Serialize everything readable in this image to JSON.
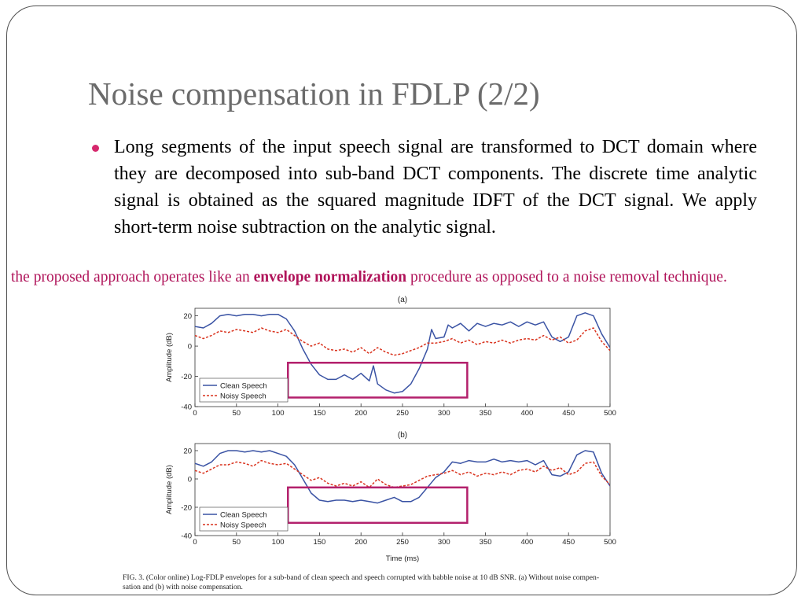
{
  "slide": {
    "title": "Noise compensation in FDLP (2/2)",
    "bullet": "Long segments of the input speech signal are transformed to DCT domain where they are decomposed into sub-band DCT components. The discrete time analytic signal is obtained as the squared magnitude IDFT of the DCT signal. We apply short-term noise subtraction on the analytic signal.",
    "note_before": "the proposed approach operates like an ",
    "note_bold": "envelope normalization",
    "note_after": " procedure as opposed to a noise removal technique.",
    "caption_line1": "FIG. 3.  (Color online) Log-FDLP envelopes for a sub-band of clean speech and speech corrupted with babble noise at 10 dB SNR. (a) Without noise compen-",
    "caption_line2": "sation and (b) with noise compensation.",
    "colors": {
      "accent": "#d6286d",
      "note": "#b0145a",
      "clean": "#3a53a4",
      "noisy": "#d9331e",
      "highlight_box": "#b3206c"
    }
  },
  "chart_data": [
    {
      "type": "line",
      "title": "(a)",
      "xlabel": "",
      "ylabel": "Amplitude (dB)",
      "xlim": [
        0,
        500
      ],
      "ylim": [
        -40,
        25
      ],
      "xticks": [
        0,
        50,
        100,
        150,
        200,
        250,
        300,
        350,
        400,
        450,
        500
      ],
      "yticks": [
        20,
        0,
        -20,
        -40
      ],
      "legend": "bottom-left",
      "series": [
        {
          "name": "Clean Speech",
          "x": [
            0,
            10,
            20,
            30,
            40,
            50,
            60,
            70,
            80,
            90,
            100,
            110,
            120,
            130,
            140,
            150,
            160,
            170,
            180,
            190,
            200,
            210,
            215,
            220,
            230,
            240,
            250,
            260,
            270,
            280,
            285,
            290,
            300,
            305,
            310,
            320,
            330,
            340,
            350,
            360,
            370,
            380,
            390,
            400,
            410,
            420,
            430,
            440,
            450,
            460,
            470,
            480,
            490,
            500
          ],
          "y": [
            13,
            12,
            15,
            20,
            21,
            20,
            21,
            21,
            20,
            21,
            21,
            18,
            10,
            -2,
            -12,
            -19,
            -22,
            -22,
            -19,
            -22,
            -18,
            -23,
            -13,
            -25,
            -29,
            -31,
            -30,
            -25,
            -15,
            -2,
            11,
            5,
            6,
            14,
            12,
            15,
            10,
            15,
            13,
            15,
            14,
            16,
            13,
            16,
            14,
            16,
            6,
            3,
            6,
            20,
            22,
            20,
            8,
            -1
          ]
        },
        {
          "name": "Noisy Speech",
          "x": [
            0,
            10,
            20,
            30,
            40,
            50,
            60,
            70,
            80,
            90,
            100,
            110,
            120,
            130,
            140,
            150,
            160,
            170,
            180,
            190,
            200,
            210,
            220,
            230,
            240,
            250,
            260,
            270,
            280,
            290,
            300,
            310,
            320,
            330,
            340,
            350,
            360,
            370,
            380,
            390,
            400,
            410,
            420,
            430,
            440,
            450,
            460,
            470,
            480,
            490,
            500
          ],
          "y": [
            7,
            5,
            7,
            10,
            9,
            11,
            10,
            9,
            12,
            10,
            9,
            11,
            7,
            3,
            0,
            2,
            -2,
            -3,
            -2,
            -4,
            -1,
            -5,
            -1,
            -4,
            -6,
            -5,
            -3,
            -1,
            2,
            2,
            3,
            5,
            2,
            4,
            1,
            3,
            2,
            4,
            2,
            4,
            5,
            4,
            7,
            4,
            6,
            2,
            4,
            10,
            12,
            3,
            -3
          ]
        }
      ],
      "highlight_box": {
        "x": [
          112,
          328
        ],
        "y": [
          -11,
          -34
        ]
      }
    },
    {
      "type": "line",
      "title": "(b)",
      "xlabel": "Time (ms)",
      "ylabel": "Amplitude (dB)",
      "xlim": [
        0,
        500
      ],
      "ylim": [
        -40,
        25
      ],
      "xticks": [
        0,
        50,
        100,
        150,
        200,
        250,
        300,
        350,
        400,
        450,
        500
      ],
      "yticks": [
        20,
        0,
        -20,
        -40
      ],
      "legend": "bottom-left",
      "series": [
        {
          "name": "Clean Speech",
          "x": [
            0,
            10,
            20,
            30,
            40,
            50,
            60,
            70,
            80,
            90,
            100,
            110,
            120,
            130,
            140,
            150,
            160,
            170,
            180,
            190,
            200,
            210,
            220,
            230,
            240,
            250,
            260,
            270,
            280,
            290,
            300,
            310,
            320,
            330,
            340,
            350,
            360,
            370,
            380,
            390,
            400,
            410,
            420,
            430,
            440,
            450,
            460,
            470,
            480,
            490,
            500
          ],
          "y": [
            11,
            9,
            12,
            18,
            20,
            20,
            19,
            20,
            19,
            20,
            18,
            16,
            10,
            0,
            -10,
            -15,
            -16,
            -15,
            -15,
            -16,
            -15,
            -16,
            -17,
            -15,
            -13,
            -16,
            -16,
            -13,
            -6,
            1,
            5,
            12,
            11,
            13,
            12,
            12,
            14,
            12,
            13,
            12,
            13,
            10,
            13,
            3,
            2,
            5,
            17,
            20,
            19,
            4,
            -5
          ]
        },
        {
          "name": "Noisy Speech",
          "x": [
            0,
            10,
            20,
            30,
            40,
            50,
            60,
            70,
            80,
            90,
            100,
            110,
            120,
            130,
            140,
            150,
            160,
            170,
            180,
            190,
            200,
            210,
            220,
            230,
            240,
            250,
            260,
            270,
            280,
            290,
            300,
            310,
            320,
            330,
            340,
            350,
            360,
            370,
            380,
            390,
            400,
            410,
            420,
            430,
            440,
            450,
            460,
            470,
            480,
            490,
            500
          ],
          "y": [
            6,
            4,
            7,
            10,
            10,
            12,
            11,
            9,
            13,
            11,
            10,
            11,
            7,
            3,
            -1,
            1,
            -3,
            -5,
            -3,
            -5,
            -2,
            -6,
            0,
            -4,
            -6,
            -5,
            -4,
            -1,
            2,
            3,
            4,
            6,
            3,
            5,
            2,
            4,
            3,
            5,
            3,
            6,
            7,
            5,
            9,
            6,
            8,
            3,
            5,
            11,
            12,
            2,
            -4
          ]
        }
      ],
      "highlight_box": {
        "x": [
          112,
          328
        ],
        "y": [
          -6,
          -31
        ]
      }
    }
  ]
}
